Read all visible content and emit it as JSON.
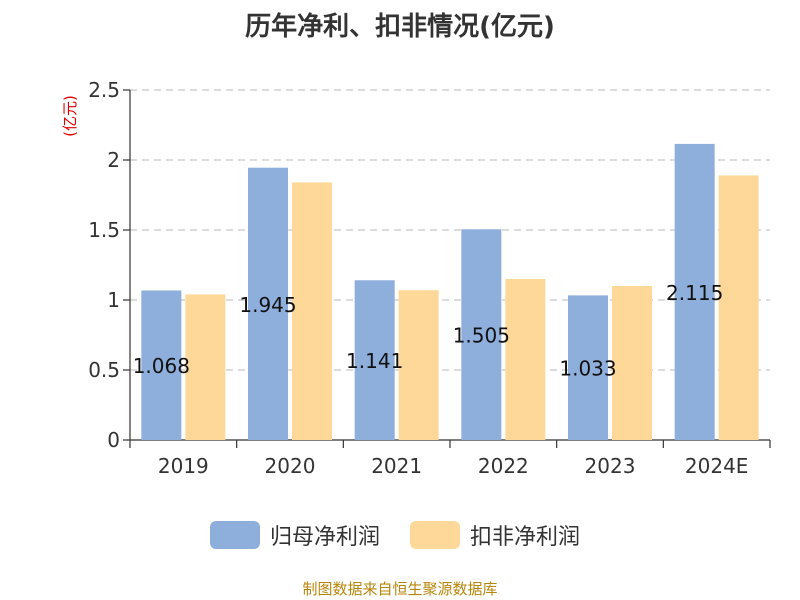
{
  "title": "历年净利、扣非情况(亿元)",
  "source_note": "制图数据来自恒生聚源数据库",
  "colors": {
    "series1": "#8eaedb",
    "series2": "#fdd898",
    "unit_label": "#e00000",
    "axis": "#333333",
    "grid": "#c8c8c8"
  },
  "chart_data": {
    "type": "bar",
    "title": "历年净利、扣非情况(亿元)",
    "ylabel": "(亿元)",
    "xlabel": "",
    "ylim": [
      0,
      2.5
    ],
    "yticks": [
      "0",
      "0.5",
      "1",
      "1.5",
      "2",
      "2.5"
    ],
    "ytick_values": [
      0,
      0.5,
      1,
      1.5,
      2,
      2.5
    ],
    "grid": true,
    "legend_position": "bottom",
    "categories": [
      "2019",
      "2020",
      "2021",
      "2022",
      "2023",
      "2024E"
    ],
    "series": [
      {
        "name": "归母净利润",
        "values": [
          1.068,
          1.945,
          1.141,
          1.505,
          1.033,
          2.115
        ],
        "labels": [
          "1.068",
          "1.945",
          "1.141",
          "1.505",
          "1.033",
          "2.115"
        ]
      },
      {
        "name": "扣非净利润",
        "values": [
          1.04,
          1.84,
          1.07,
          1.15,
          1.1,
          1.89
        ]
      }
    ]
  }
}
